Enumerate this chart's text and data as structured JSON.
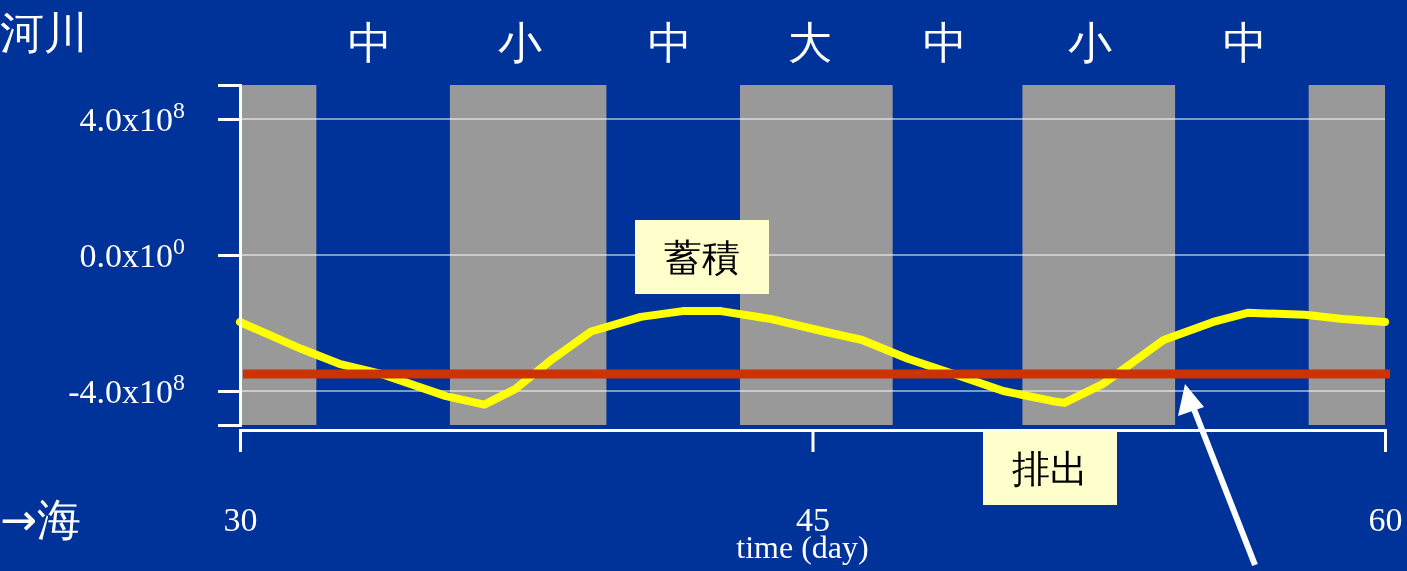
{
  "chart_data": {
    "type": "line",
    "xlabel": "time (day)",
    "xlim": [
      30,
      60
    ],
    "ylim": [
      -500000000,
      500000000
    ],
    "xticks": [
      30,
      45,
      60
    ],
    "yticks": [
      {
        "value": -400000000,
        "label": "-4.0x10$^{8}$"
      },
      {
        "value": 0,
        "label": "0.0x10$^{0}$"
      },
      {
        "value": 400000000,
        "label": "4.0x10$^{8}$"
      }
    ],
    "grid": "y",
    "marker": "none",
    "line_style": "solid",
    "x": [
      30,
      31.6,
      32.6,
      33.7,
      35.4,
      36.4,
      37.2,
      38.2,
      39.2,
      40.5,
      41.6,
      42.6,
      43.9,
      45.3,
      46.3,
      47.5,
      48.7,
      50,
      51.3,
      51.6,
      52.6,
      54.2,
      55.5,
      56.4,
      57.9,
      58.9,
      60
    ],
    "series": [
      {
        "color": "#ffff00",
        "values": [
          -197000000,
          -276000000,
          -320000000,
          -350000000,
          -415000000,
          -440000000,
          -395000000,
          -305000000,
          -225000000,
          -182000000,
          -165000000,
          -165000000,
          -188000000,
          -225000000,
          -250000000,
          -305000000,
          -350000000,
          -400000000,
          -430000000,
          -435000000,
          -380000000,
          -250000000,
          -197000000,
          -170000000,
          -176000000,
          -188000000,
          -197000000
        ]
      }
    ],
    "ref_lines": [
      {
        "axis": "y",
        "value": -350000000,
        "color": "#cc3300"
      }
    ],
    "bands": [
      {
        "axis": "x",
        "from": 30,
        "to": 32,
        "color": "#999999"
      },
      {
        "axis": "x",
        "from": 35.5,
        "to": 39.6,
        "color": "#999999"
      },
      {
        "axis": "x",
        "from": 43.1,
        "to": 47.1,
        "color": "#999999"
      },
      {
        "axis": "x",
        "from": 50.5,
        "to": 54.5,
        "color": "#999999"
      },
      {
        "axis": "x",
        "from": 58,
        "to": 60,
        "color": "#999999"
      }
    ],
    "annotations": [
      "中",
      "小",
      "中",
      "大",
      "中",
      "小",
      "中",
      "蓄積",
      "排出",
      "河川",
      "→海"
    ]
  }
}
